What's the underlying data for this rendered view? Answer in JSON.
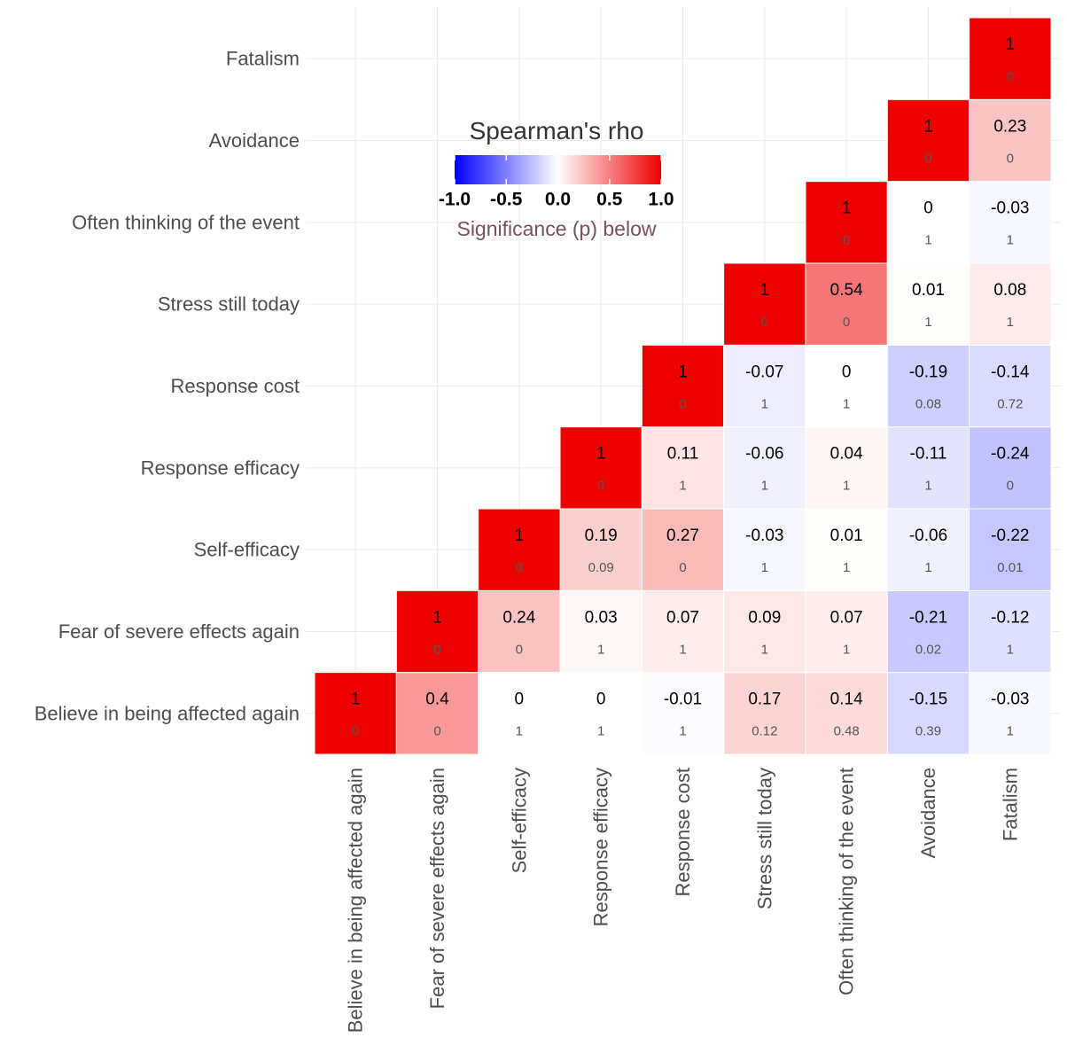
{
  "chart_data": {
    "type": "heatmap",
    "title": "",
    "variables": [
      "Believe in being affected again",
      "Fear of severe effects again",
      "Self-efficacy",
      "Response efficacy",
      "Response cost",
      "Stress still today",
      "Often thinking of the event",
      "Avoidance",
      "Fatalism"
    ],
    "rho": [
      [
        1,
        0.4,
        0,
        0,
        -0.01,
        0.17,
        0.14,
        -0.15,
        -0.03
      ],
      [
        null,
        1,
        0.24,
        0.03,
        0.07,
        0.09,
        0.07,
        -0.21,
        -0.12
      ],
      [
        null,
        null,
        1,
        0.19,
        0.27,
        -0.03,
        0.01,
        -0.06,
        -0.22
      ],
      [
        null,
        null,
        null,
        1,
        0.11,
        -0.06,
        0.04,
        -0.11,
        -0.24
      ],
      [
        null,
        null,
        null,
        null,
        1,
        -0.07,
        0,
        -0.19,
        -0.14
      ],
      [
        null,
        null,
        null,
        null,
        null,
        1,
        0.54,
        0.01,
        0.08
      ],
      [
        null,
        null,
        null,
        null,
        null,
        null,
        1,
        0,
        -0.03
      ],
      [
        null,
        null,
        null,
        null,
        null,
        null,
        null,
        1,
        0.23
      ],
      [
        null,
        null,
        null,
        null,
        null,
        null,
        null,
        null,
        1
      ]
    ],
    "p": [
      [
        "0",
        "0",
        "1",
        "1",
        "1",
        "0.12",
        "0.48",
        "0.39",
        "1"
      ],
      [
        null,
        "0",
        "0",
        "1",
        "1",
        "1",
        "1",
        "0.02",
        "1"
      ],
      [
        null,
        null,
        "0",
        "0.09",
        "0",
        "1",
        "1",
        "1",
        "0.01"
      ],
      [
        null,
        null,
        null,
        "0",
        "1",
        "1",
        "1",
        "1",
        "0"
      ],
      [
        null,
        null,
        null,
        null,
        "0",
        "1",
        "1",
        "0.08",
        "0.72"
      ],
      [
        null,
        null,
        null,
        null,
        null,
        "0",
        "0",
        "1",
        "1"
      ],
      [
        null,
        null,
        null,
        null,
        null,
        null,
        "0",
        "1",
        "1"
      ],
      [
        null,
        null,
        null,
        null,
        null,
        null,
        null,
        "0",
        "0"
      ],
      [
        null,
        null,
        null,
        null,
        null,
        null,
        null,
        null,
        "0"
      ]
    ],
    "rho_labels": [
      [
        "1",
        "0.4",
        "0",
        "0",
        "-0.01",
        "0.17",
        "0.14",
        "-0.15",
        "-0.03"
      ],
      [
        null,
        "1",
        "0.24",
        "0.03",
        "0.07",
        "0.09",
        "0.07",
        "-0.21",
        "-0.12"
      ],
      [
        null,
        null,
        "1",
        "0.19",
        "0.27",
        "-0.03",
        "0.01",
        "-0.06",
        "-0.22"
      ],
      [
        null,
        null,
        null,
        "1",
        "0.11",
        "-0.06",
        "0.04",
        "-0.11",
        "-0.24"
      ],
      [
        null,
        null,
        null,
        null,
        "1",
        "-0.07",
        "0",
        "-0.19",
        "-0.14"
      ],
      [
        null,
        null,
        null,
        null,
        null,
        "1",
        "0.54",
        "0.01",
        "0.08"
      ],
      [
        null,
        null,
        null,
        null,
        null,
        null,
        "1",
        "0",
        "-0.03"
      ],
      [
        null,
        null,
        null,
        null,
        null,
        null,
        null,
        "1",
        "0.23"
      ],
      [
        null,
        null,
        null,
        null,
        null,
        null,
        null,
        null,
        "1"
      ]
    ],
    "xlabel": "",
    "ylabel": "",
    "legend": {
      "title": "Spearman's rho",
      "range": [
        -1,
        1
      ],
      "ticks": [
        "-1.0",
        "-0.5",
        "0.0",
        "0.5",
        "1.0"
      ],
      "note": "Significance (p) below",
      "placement": "top-left inside plot",
      "low_color": "#0000FF",
      "mid_color": "#FFFFFF",
      "high_color": "#EE0000"
    },
    "colors": {
      "grid": "#ebebeb",
      "axis_text": "#4d4d4d",
      "p_text": "#555555",
      "p_text_on_red": "#c04040"
    }
  }
}
